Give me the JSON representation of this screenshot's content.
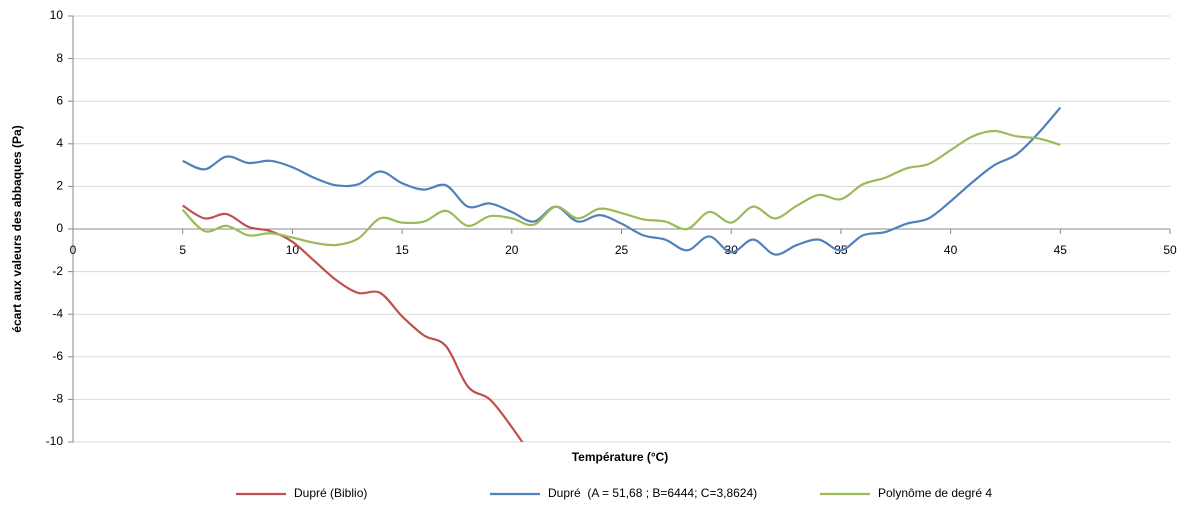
{
  "chart_data": {
    "type": "line",
    "x_label": "Température (°C)",
    "y_label": "écart aux valeurs des abbaques (Pa)",
    "xlim": [
      0,
      50
    ],
    "xticks": [
      0,
      5,
      10,
      15,
      20,
      25,
      30,
      35,
      40,
      45,
      50
    ],
    "ylim": [
      -10,
      10
    ],
    "yticks": [
      -10,
      -8,
      -6,
      -4,
      -2,
      0,
      2,
      4,
      6,
      8,
      10
    ],
    "grid": true,
    "legend": "bottom",
    "smooth": true,
    "series": [
      {
        "name": "Dupré (Biblio)",
        "color": "#c0504d",
        "x": [
          5,
          6,
          7,
          8,
          9,
          10,
          11,
          12,
          13,
          14,
          15,
          16,
          17,
          18,
          19,
          20,
          21
        ],
        "values": [
          1.1,
          0.5,
          0.7,
          0.1,
          -0.1,
          -0.6,
          -1.5,
          -2.4,
          -3.0,
          -3.0,
          -4.1,
          -5.0,
          -5.5,
          -7.4,
          -8.0,
          -9.3,
          -10.8
        ]
      },
      {
        "name": "Dupré  (A = 51,68 ; B=6444; C=3,8624)",
        "color": "#4f81bd",
        "x": [
          5,
          6,
          7,
          8,
          9,
          10,
          11,
          12,
          13,
          14,
          15,
          16,
          17,
          18,
          19,
          20,
          21,
          22,
          23,
          24,
          25,
          26,
          27,
          28,
          29,
          30,
          31,
          32,
          33,
          34,
          35,
          36,
          37,
          38,
          39,
          40,
          41,
          42,
          43,
          44,
          45
        ],
        "values": [
          3.2,
          2.8,
          3.4,
          3.1,
          3.2,
          2.9,
          2.4,
          2.05,
          2.1,
          2.7,
          2.15,
          1.85,
          2.05,
          1.05,
          1.2,
          0.8,
          0.35,
          1.05,
          0.35,
          0.65,
          0.25,
          -0.3,
          -0.5,
          -1.0,
          -0.35,
          -1.1,
          -0.5,
          -1.2,
          -0.75,
          -0.5,
          -1.0,
          -0.3,
          -0.15,
          0.25,
          0.5,
          1.3,
          2.2,
          3.0,
          3.5,
          4.5,
          5.7
        ]
      },
      {
        "name": "Polynôme de degré 4",
        "color": "#9bbb59",
        "x": [
          5,
          6,
          7,
          8,
          9,
          10,
          11,
          12,
          13,
          14,
          15,
          16,
          17,
          18,
          19,
          20,
          21,
          22,
          23,
          24,
          25,
          26,
          27,
          28,
          29,
          30,
          31,
          32,
          33,
          34,
          35,
          36,
          37,
          38,
          39,
          40,
          41,
          42,
          43,
          44,
          45
        ],
        "values": [
          0.9,
          -0.1,
          0.15,
          -0.3,
          -0.2,
          -0.4,
          -0.65,
          -0.75,
          -0.45,
          0.5,
          0.3,
          0.35,
          0.85,
          0.15,
          0.6,
          0.5,
          0.2,
          1.05,
          0.5,
          0.95,
          0.75,
          0.45,
          0.35,
          0.0,
          0.8,
          0.3,
          1.05,
          0.5,
          1.1,
          1.6,
          1.4,
          2.1,
          2.4,
          2.85,
          3.05,
          3.7,
          4.35,
          4.6,
          4.35,
          4.25,
          3.95
        ]
      }
    ]
  }
}
